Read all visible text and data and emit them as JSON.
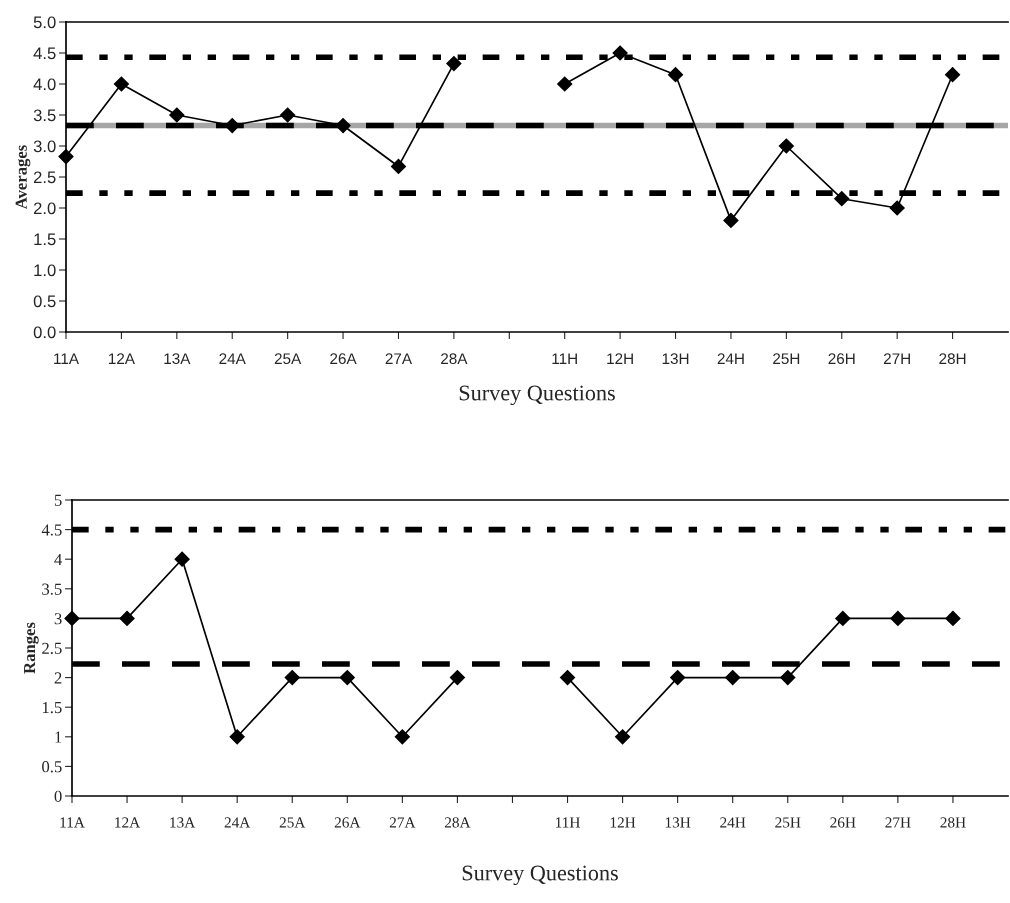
{
  "chart_data": [
    {
      "type": "line",
      "xlabel": "Survey Questions",
      "ylabel": "Averages",
      "categories": [
        "11A",
        "12A",
        "13A",
        "24A",
        "25A",
        "26A",
        "27A",
        "28A",
        null,
        "11H",
        "12H",
        "13H",
        "24H",
        "25H",
        "26H",
        "27H",
        "28H"
      ],
      "series": [
        {
          "color": "#000000",
          "values": [
            2.83,
            4.0,
            3.5,
            3.33,
            3.5,
            3.33,
            2.67,
            4.33,
            null,
            4.0,
            4.5,
            4.15,
            1.8,
            3.0,
            2.15,
            2.0,
            4.15
          ]
        }
      ],
      "ylim": [
        0,
        5
      ],
      "yticks": [
        {
          "value": 0,
          "label": "0.0"
        },
        {
          "value": 0.5,
          "label": "0.5"
        },
        {
          "value": 1,
          "label": "1.0"
        },
        {
          "value": 1.5,
          "label": "1.5"
        },
        {
          "value": 2,
          "label": "2.0"
        },
        {
          "value": 2.5,
          "label": "2.5"
        },
        {
          "value": 3,
          "label": "3.0"
        },
        {
          "value": 3.5,
          "label": "3.5"
        },
        {
          "value": 4,
          "label": "4.0"
        },
        {
          "value": 4.5,
          "label": "4.5"
        },
        {
          "value": 5,
          "label": "5.0"
        }
      ],
      "ref_lines": [
        {
          "axis": "y",
          "value": 4.43,
          "color": "#000000",
          "line_style": "dotted"
        },
        {
          "axis": "y",
          "value": 3.33,
          "color": "#a6a6a6",
          "line_style": "solid"
        },
        {
          "axis": "y",
          "value": 3.33,
          "color": "#000000",
          "line_style": "dashed"
        },
        {
          "axis": "y",
          "value": 2.24,
          "color": "#000000",
          "line_style": "dotted"
        }
      ],
      "marker": "diamond",
      "line_style": "solid",
      "grid": false
    },
    {
      "type": "line",
      "xlabel": "Survey Questions",
      "ylabel": "Ranges",
      "categories": [
        "11A",
        "12A",
        "13A",
        "24A",
        "25A",
        "26A",
        "27A",
        "28A",
        null,
        "11H",
        "12H",
        "13H",
        "24H",
        "25H",
        "26H",
        "27H",
        "28H"
      ],
      "series": [
        {
          "color": "#000000",
          "values": [
            3,
            3,
            4,
            1,
            2,
            2,
            1,
            2,
            null,
            2,
            1,
            2,
            2,
            2,
            3,
            3,
            3
          ]
        }
      ],
      "ylim": [
        0,
        5
      ],
      "yticks": [
        0,
        0.5,
        1,
        1.5,
        2,
        2.5,
        3,
        3.5,
        4,
        4.5,
        5
      ],
      "ref_lines": [
        {
          "axis": "y",
          "value": 4.5,
          "color": "#000000",
          "line_style": "dotted"
        },
        {
          "axis": "y",
          "value": 2.23,
          "color": "#000000",
          "line_style": "dashed"
        }
      ],
      "marker": "diamond",
      "line_style": "solid",
      "grid": false
    }
  ]
}
